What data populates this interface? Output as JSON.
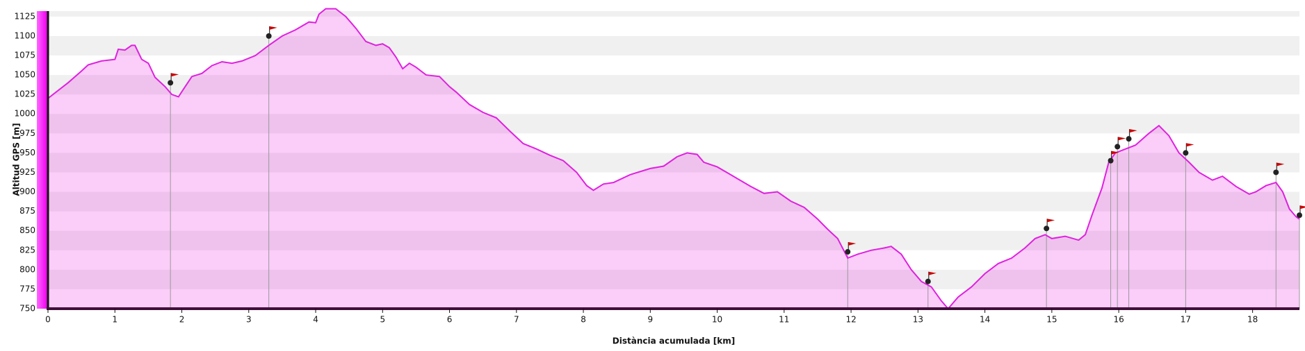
{
  "chart_data": {
    "type": "area",
    "x_label": "Distància acumulada [km]",
    "y_label": "Altitud GPS [m]",
    "color": "#e020e0",
    "fill": "#fbcdf9",
    "xlim": [
      0,
      18.7
    ],
    "ylim": [
      750,
      1132
    ],
    "xticks": [
      0,
      1,
      2,
      3,
      4,
      5,
      6,
      7,
      8,
      9,
      10,
      11,
      12,
      13,
      14,
      15,
      16,
      17,
      18
    ],
    "yticks": [
      750,
      775,
      800,
      825,
      850,
      875,
      900,
      925,
      950,
      975,
      1000,
      1025,
      1050,
      1075,
      1100,
      1125
    ],
    "grid": true,
    "series": [
      {
        "name": "Altitud",
        "x": [
          0,
          0.3,
          0.5,
          0.6,
          0.8,
          1.0,
          1.05,
          1.15,
          1.25,
          1.3,
          1.4,
          1.5,
          1.6,
          1.75,
          1.85,
          1.95,
          2.05,
          2.15,
          2.3,
          2.45,
          2.6,
          2.75,
          2.9,
          3.1,
          3.3,
          3.5,
          3.7,
          3.9,
          4.0,
          4.05,
          4.15,
          4.3,
          4.45,
          4.6,
          4.75,
          4.9,
          5.0,
          5.1,
          5.2,
          5.3,
          5.4,
          5.5,
          5.65,
          5.85,
          6.0,
          6.1,
          6.3,
          6.5,
          6.7,
          6.9,
          7.1,
          7.3,
          7.5,
          7.7,
          7.9,
          8.05,
          8.15,
          8.3,
          8.45,
          8.7,
          9.0,
          9.2,
          9.4,
          9.55,
          9.7,
          9.8,
          10.0,
          10.2,
          10.5,
          10.7,
          10.9,
          11.1,
          11.3,
          11.5,
          11.65,
          11.8,
          11.95,
          12.1,
          12.3,
          12.5,
          12.6,
          12.75,
          12.9,
          13.05,
          13.2,
          13.35,
          13.45,
          13.6,
          13.8,
          14.0,
          14.2,
          14.4,
          14.6,
          14.75,
          14.9,
          15.0,
          15.2,
          15.4,
          15.5,
          15.6,
          15.75,
          15.85,
          15.95,
          16.1,
          16.25,
          16.45,
          16.6,
          16.75,
          16.9,
          17.05,
          17.2,
          17.4,
          17.55,
          17.75,
          17.95,
          18.05,
          18.2,
          18.35,
          18.45,
          18.55,
          18.65,
          18.7
        ],
        "values": [
          1020,
          1040,
          1055,
          1063,
          1068,
          1070,
          1083,
          1082,
          1088,
          1088,
          1070,
          1065,
          1047,
          1035,
          1025,
          1022,
          1035,
          1048,
          1052,
          1062,
          1067,
          1065,
          1068,
          1075,
          1088,
          1100,
          1108,
          1118,
          1117,
          1128,
          1135,
          1135,
          1125,
          1110,
          1093,
          1088,
          1090,
          1085,
          1073,
          1058,
          1065,
          1060,
          1050,
          1048,
          1035,
          1028,
          1012,
          1002,
          995,
          978,
          962,
          955,
          947,
          940,
          925,
          908,
          902,
          910,
          912,
          922,
          930,
          933,
          945,
          950,
          948,
          938,
          932,
          922,
          907,
          898,
          900,
          888,
          880,
          865,
          852,
          840,
          815,
          820,
          825,
          828,
          830,
          820,
          800,
          785,
          778,
          760,
          750,
          765,
          778,
          795,
          808,
          815,
          828,
          840,
          845,
          840,
          843,
          838,
          845,
          870,
          905,
          938,
          950,
          955,
          960,
          975,
          985,
          972,
          950,
          938,
          925,
          915,
          920,
          907,
          897,
          900,
          908,
          912,
          900,
          878,
          868,
          865
        ]
      }
    ],
    "waypoints": {
      "x": [
        1.83,
        3.3,
        11.95,
        13.15,
        14.92,
        15.88,
        15.98,
        16.15,
        17.0,
        18.35,
        18.7
      ],
      "values": [
        1040,
        1100,
        823,
        785,
        853,
        940,
        958,
        968,
        950,
        925,
        870
      ]
    }
  }
}
